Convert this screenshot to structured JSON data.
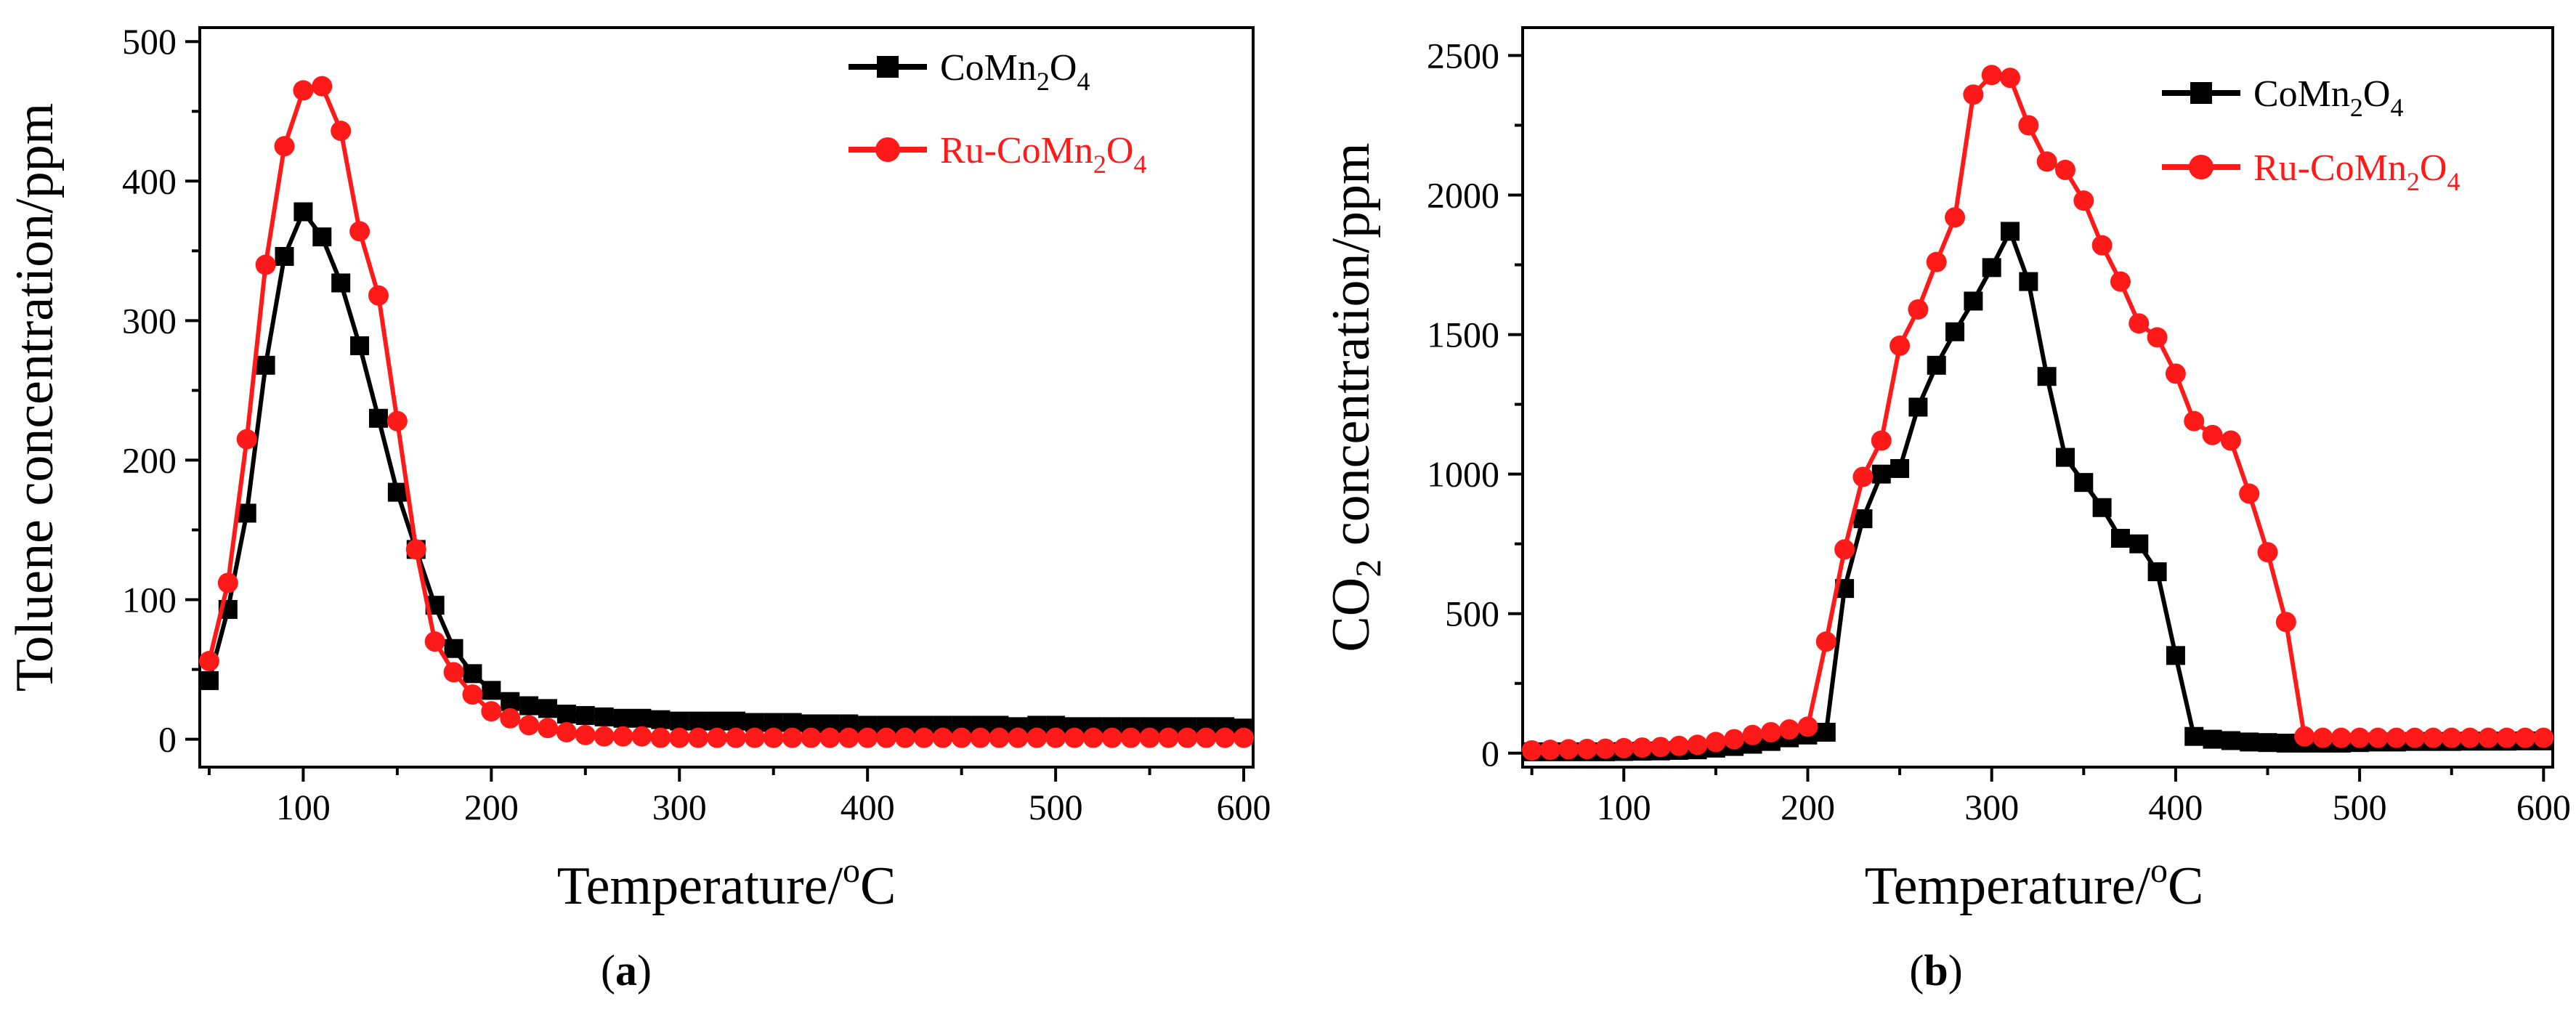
{
  "figure": {
    "panel_a_letter": "a",
    "panel_b_letter": "b"
  },
  "colors": {
    "black_series": "#000000",
    "red_series": "#ff1a1a"
  },
  "chart_data": [
    {
      "type": "line",
      "panel": "a",
      "xlabel": "Temperature/°C",
      "xlabel_parts": {
        "main": "Temperature/",
        "sup": "o",
        "unit": "C"
      },
      "ylabel": "Toluene concentration/ppm",
      "xlim": [
        45,
        605
      ],
      "ylim": [
        -20,
        510
      ],
      "xticks": [
        100,
        200,
        300,
        400,
        500,
        600
      ],
      "yticks": [
        0,
        100,
        200,
        300,
        400,
        500
      ],
      "tick_labels_x": [
        "100",
        "200",
        "300",
        "400",
        "500",
        "600"
      ],
      "tick_labels_y": [
        "0",
        "100",
        "200",
        "300",
        "400",
        "500"
      ],
      "grid": false,
      "legend_position": "top-right",
      "series": [
        {
          "name": "CoMn2O4",
          "name_parts": [
            "CoMn",
            "2",
            "O",
            "4"
          ],
          "color": "#000000",
          "marker": "square",
          "x": [
            50,
            60,
            70,
            80,
            90,
            100,
            110,
            120,
            130,
            140,
            150,
            160,
            170,
            180,
            190,
            200,
            210,
            220,
            230,
            240,
            250,
            260,
            270,
            280,
            290,
            300,
            310,
            320,
            330,
            340,
            350,
            360,
            370,
            380,
            390,
            400,
            410,
            420,
            430,
            440,
            450,
            460,
            470,
            480,
            490,
            500,
            510,
            520,
            530,
            540,
            550,
            560,
            570,
            580,
            590,
            600
          ],
          "y": [
            42,
            93,
            162,
            268,
            346,
            378,
            360,
            327,
            282,
            230,
            177,
            136,
            96,
            65,
            47,
            35,
            27,
            24,
            22,
            18,
            17,
            16,
            15,
            15,
            14,
            13,
            13,
            13,
            13,
            12,
            12,
            12,
            11,
            11,
            11,
            10,
            10,
            10,
            10,
            10,
            10,
            10,
            10,
            9,
            10,
            10,
            9,
            9,
            9,
            9,
            9,
            9,
            9,
            9,
            9,
            8
          ]
        },
        {
          "name": "Ru-CoMn2O4",
          "name_parts": [
            "Ru-CoMn",
            "2",
            "O",
            "4"
          ],
          "color": "#ff1a1a",
          "marker": "circle",
          "x": [
            50,
            60,
            70,
            80,
            90,
            100,
            110,
            120,
            130,
            140,
            150,
            160,
            170,
            180,
            190,
            200,
            210,
            220,
            230,
            240,
            250,
            260,
            270,
            280,
            290,
            300,
            310,
            320,
            330,
            340,
            350,
            360,
            370,
            380,
            390,
            400,
            410,
            420,
            430,
            440,
            450,
            460,
            470,
            480,
            490,
            500,
            510,
            520,
            530,
            540,
            550,
            560,
            570,
            580,
            590,
            600
          ],
          "y": [
            56,
            112,
            215,
            340,
            425,
            465,
            468,
            436,
            364,
            318,
            228,
            136,
            70,
            48,
            32,
            20,
            15,
            10,
            8,
            5,
            3,
            2,
            2,
            2,
            1,
            1,
            1,
            1,
            1,
            1,
            1,
            1,
            1,
            1,
            1,
            1,
            1,
            1,
            1,
            1,
            1,
            1,
            1,
            1,
            1,
            1,
            1,
            1,
            1,
            1,
            1,
            1,
            1,
            1,
            1,
            1
          ]
        }
      ]
    },
    {
      "type": "line",
      "panel": "b",
      "xlabel": "Temperature/°C",
      "xlabel_parts": {
        "main": "Temperature/",
        "sup": "o",
        "unit": "C"
      },
      "ylabel": "CO2 concentration/ppm",
      "ylabel_parts": {
        "pre": "CO",
        "sub": "2",
        "post": " concentration/ppm"
      },
      "xlim": [
        45,
        605
      ],
      "ylim": [
        -50,
        2600
      ],
      "xticks": [
        100,
        200,
        300,
        400,
        500,
        600
      ],
      "yticks": [
        0,
        500,
        1000,
        1500,
        2000,
        2500
      ],
      "tick_labels_x": [
        "100",
        "200",
        "300",
        "400",
        "500",
        "600"
      ],
      "tick_labels_y": [
        "0",
        "500",
        "1000",
        "1500",
        "2000",
        "2500"
      ],
      "grid": false,
      "legend_position": "top-right",
      "series": [
        {
          "name": "CoMn2O4",
          "name_parts": [
            "CoMn",
            "2",
            "O",
            "4"
          ],
          "color": "#000000",
          "marker": "square",
          "x": [
            50,
            60,
            70,
            80,
            90,
            100,
            110,
            120,
            130,
            140,
            150,
            160,
            170,
            180,
            190,
            200,
            210,
            220,
            230,
            240,
            250,
            260,
            270,
            280,
            290,
            300,
            310,
            320,
            330,
            340,
            350,
            360,
            370,
            380,
            390,
            400,
            410,
            420,
            430,
            440,
            450,
            460,
            470,
            480,
            490,
            500,
            510,
            520,
            530,
            540,
            550,
            560,
            570,
            580,
            590,
            600
          ],
          "y": [
            5,
            5,
            5,
            5,
            5,
            6,
            7,
            8,
            10,
            12,
            18,
            24,
            32,
            42,
            55,
            65,
            75,
            590,
            840,
            1000,
            1020,
            1240,
            1390,
            1510,
            1620,
            1740,
            1870,
            1690,
            1350,
            1060,
            970,
            880,
            770,
            750,
            650,
            350,
            60,
            50,
            45,
            40,
            38,
            36,
            36,
            36,
            36,
            38,
            40,
            40,
            42,
            42,
            42,
            43,
            43,
            43,
            44,
            44
          ]
        },
        {
          "name": "Ru-CoMn2O4",
          "name_parts": [
            "Ru-CoMn",
            "2",
            "O",
            "4"
          ],
          "color": "#ff1a1a",
          "marker": "circle",
          "x": [
            50,
            60,
            70,
            80,
            90,
            100,
            110,
            120,
            130,
            140,
            150,
            160,
            170,
            180,
            190,
            200,
            210,
            220,
            230,
            240,
            250,
            260,
            270,
            280,
            290,
            300,
            310,
            320,
            330,
            340,
            350,
            360,
            370,
            380,
            390,
            400,
            410,
            420,
            430,
            440,
            450,
            460,
            470,
            480,
            490,
            500,
            510,
            520,
            530,
            540,
            550,
            560,
            570,
            580,
            590,
            600
          ],
          "y": [
            10,
            12,
            14,
            15,
            16,
            18,
            20,
            22,
            26,
            30,
            40,
            50,
            65,
            75,
            85,
            95,
            400,
            730,
            990,
            1120,
            1460,
            1590,
            1760,
            1920,
            2360,
            2430,
            2420,
            2250,
            2120,
            2090,
            1980,
            1820,
            1690,
            1540,
            1490,
            1360,
            1190,
            1140,
            1120,
            930,
            720,
            470,
            60,
            55,
            55,
            55,
            55,
            55,
            55,
            55,
            55,
            55,
            55,
            55,
            55,
            55
          ]
        }
      ]
    }
  ]
}
